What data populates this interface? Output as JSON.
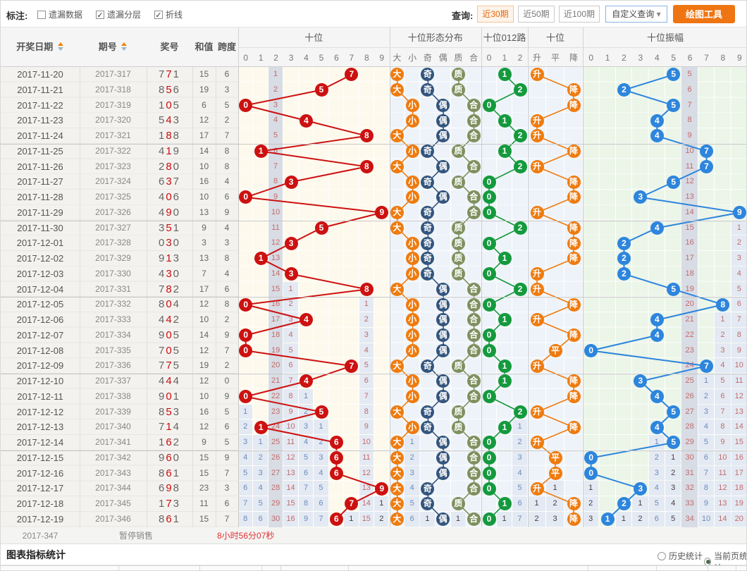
{
  "toolbar": {
    "mark_label": "标注:",
    "checkboxes": [
      {
        "label": "遗漏数据",
        "checked": false
      },
      {
        "label": "遗漏分层",
        "checked": true
      },
      {
        "label": "折线",
        "checked": true
      }
    ],
    "query_label": "查询:",
    "query_buttons": [
      {
        "label": "近30期",
        "active": true
      },
      {
        "label": "近50期",
        "active": false
      },
      {
        "label": "近100期",
        "active": false
      }
    ],
    "custom_query_label": "自定义查询",
    "draw_tool_label": "绘图工具"
  },
  "header": {
    "date": "开奖日期",
    "period": "期号",
    "prize": "奖号",
    "sum": "和值",
    "span": "跨度",
    "tens_group": "十位",
    "shape_group": "十位形态分布",
    "road_group": "十位012路",
    "updown_group": "十位",
    "amp_group": "十位振幅",
    "digit_cols": [
      "0",
      "1",
      "2",
      "3",
      "4",
      "5",
      "6",
      "7",
      "8",
      "9"
    ],
    "shape_cols": [
      "大",
      "小",
      "奇",
      "偶",
      "质",
      "合"
    ],
    "road_cols": [
      "0",
      "1",
      "2"
    ],
    "updown_cols": [
      "升",
      "平",
      "降"
    ],
    "amp_cols": [
      "0",
      "1",
      "2",
      "3",
      "4",
      "5",
      "6",
      "7",
      "8",
      "9"
    ]
  },
  "chart_data": {
    "type": "table",
    "prev_tens_digit": 2,
    "nohit_starts": {
      "tens_col": 2,
      "tens_start": 1,
      "amp_col": 6,
      "amp_start": 5
    },
    "amplitudes": [
      5,
      2,
      5,
      4,
      4,
      7,
      7,
      5,
      3,
      9,
      4,
      2,
      2,
      2,
      5,
      8,
      4,
      4,
      0,
      7,
      3,
      4,
      5,
      4,
      5,
      0,
      0,
      3,
      2,
      1
    ],
    "rows": [
      {
        "date": "2017-11-20",
        "period": "2017-317",
        "prize": "771",
        "sum": 15,
        "span": 6,
        "tens": 7
      },
      {
        "date": "2017-11-21",
        "period": "2017-318",
        "prize": "856",
        "sum": 19,
        "span": 3,
        "tens": 5
      },
      {
        "date": "2017-11-22",
        "period": "2017-319",
        "prize": "105",
        "sum": 6,
        "span": 5,
        "tens": 0
      },
      {
        "date": "2017-11-23",
        "period": "2017-320",
        "prize": "543",
        "sum": 12,
        "span": 2,
        "tens": 4
      },
      {
        "date": "2017-11-24",
        "period": "2017-321",
        "prize": "188",
        "sum": 17,
        "span": 7,
        "tens": 8
      },
      {
        "date": "2017-11-25",
        "period": "2017-322",
        "prize": "419",
        "sum": 14,
        "span": 8,
        "tens": 1
      },
      {
        "date": "2017-11-26",
        "period": "2017-323",
        "prize": "280",
        "sum": 10,
        "span": 8,
        "tens": 8
      },
      {
        "date": "2017-11-27",
        "period": "2017-324",
        "prize": "637",
        "sum": 16,
        "span": 4,
        "tens": 3
      },
      {
        "date": "2017-11-28",
        "period": "2017-325",
        "prize": "406",
        "sum": 10,
        "span": 6,
        "tens": 0
      },
      {
        "date": "2017-11-29",
        "period": "2017-326",
        "prize": "490",
        "sum": 13,
        "span": 9,
        "tens": 9
      },
      {
        "date": "2017-11-30",
        "period": "2017-327",
        "prize": "351",
        "sum": 9,
        "span": 4,
        "tens": 5
      },
      {
        "date": "2017-12-01",
        "period": "2017-328",
        "prize": "030",
        "sum": 3,
        "span": 3,
        "tens": 3
      },
      {
        "date": "2017-12-02",
        "period": "2017-329",
        "prize": "913",
        "sum": 13,
        "span": 8,
        "tens": 1
      },
      {
        "date": "2017-12-03",
        "period": "2017-330",
        "prize": "430",
        "sum": 7,
        "span": 4,
        "tens": 3
      },
      {
        "date": "2017-12-04",
        "period": "2017-331",
        "prize": "782",
        "sum": 17,
        "span": 6,
        "tens": 8
      },
      {
        "date": "2017-12-05",
        "period": "2017-332",
        "prize": "804",
        "sum": 12,
        "span": 8,
        "tens": 0
      },
      {
        "date": "2017-12-06",
        "period": "2017-333",
        "prize": "442",
        "sum": 10,
        "span": 2,
        "tens": 4
      },
      {
        "date": "2017-12-07",
        "period": "2017-334",
        "prize": "905",
        "sum": 14,
        "span": 9,
        "tens": 0
      },
      {
        "date": "2017-12-08",
        "period": "2017-335",
        "prize": "705",
        "sum": 12,
        "span": 7,
        "tens": 0
      },
      {
        "date": "2017-12-09",
        "period": "2017-336",
        "prize": "775",
        "sum": 19,
        "span": 2,
        "tens": 7
      },
      {
        "date": "2017-12-10",
        "period": "2017-337",
        "prize": "444",
        "sum": 12,
        "span": 0,
        "tens": 4
      },
      {
        "date": "2017-12-11",
        "period": "2017-338",
        "prize": "901",
        "sum": 10,
        "span": 9,
        "tens": 0
      },
      {
        "date": "2017-12-12",
        "period": "2017-339",
        "prize": "853",
        "sum": 16,
        "span": 5,
        "tens": 5
      },
      {
        "date": "2017-12-13",
        "period": "2017-340",
        "prize": "714",
        "sum": 12,
        "span": 6,
        "tens": 1
      },
      {
        "date": "2017-12-14",
        "period": "2017-341",
        "prize": "162",
        "sum": 9,
        "span": 5,
        "tens": 6
      },
      {
        "date": "2017-12-15",
        "period": "2017-342",
        "prize": "960",
        "sum": 15,
        "span": 9,
        "tens": 6
      },
      {
        "date": "2017-12-16",
        "period": "2017-343",
        "prize": "861",
        "sum": 15,
        "span": 7,
        "tens": 6
      },
      {
        "date": "2017-12-17",
        "period": "2017-344",
        "prize": "698",
        "sum": 23,
        "span": 3,
        "tens": 9
      },
      {
        "date": "2017-12-18",
        "period": "2017-345",
        "prize": "173",
        "sum": 11,
        "span": 6,
        "tens": 7
      },
      {
        "date": "2017-12-19",
        "period": "2017-346",
        "prize": "861",
        "sum": 15,
        "span": 7,
        "tens": 6
      }
    ]
  },
  "footer": {
    "pending_period": "2017-347",
    "pending_status": "暂停销售",
    "countdown": "8小时56分07秒",
    "stats_title": "图表指标统计",
    "radio_history": "历史统计",
    "radio_current": "当前页统计",
    "radio_selected": "当前页统计"
  },
  "colors": {
    "red_circle": "#cc1111",
    "orange": "#ef7b0e",
    "navy": "#33557d",
    "olive": "#7e905d",
    "green": "#149a3d",
    "blue": "#2d85dd",
    "miss_dark": "#3f3f3f",
    "miss_blue": "#6b8abc",
    "miss_red": "#c26b6b",
    "strip": "#d8dce4",
    "shade": "#e4eaf3",
    "tens_bg": "#fdf9ec",
    "shape_bg": "#eef3f9",
    "amp_bg": "#ebf5e8"
  }
}
